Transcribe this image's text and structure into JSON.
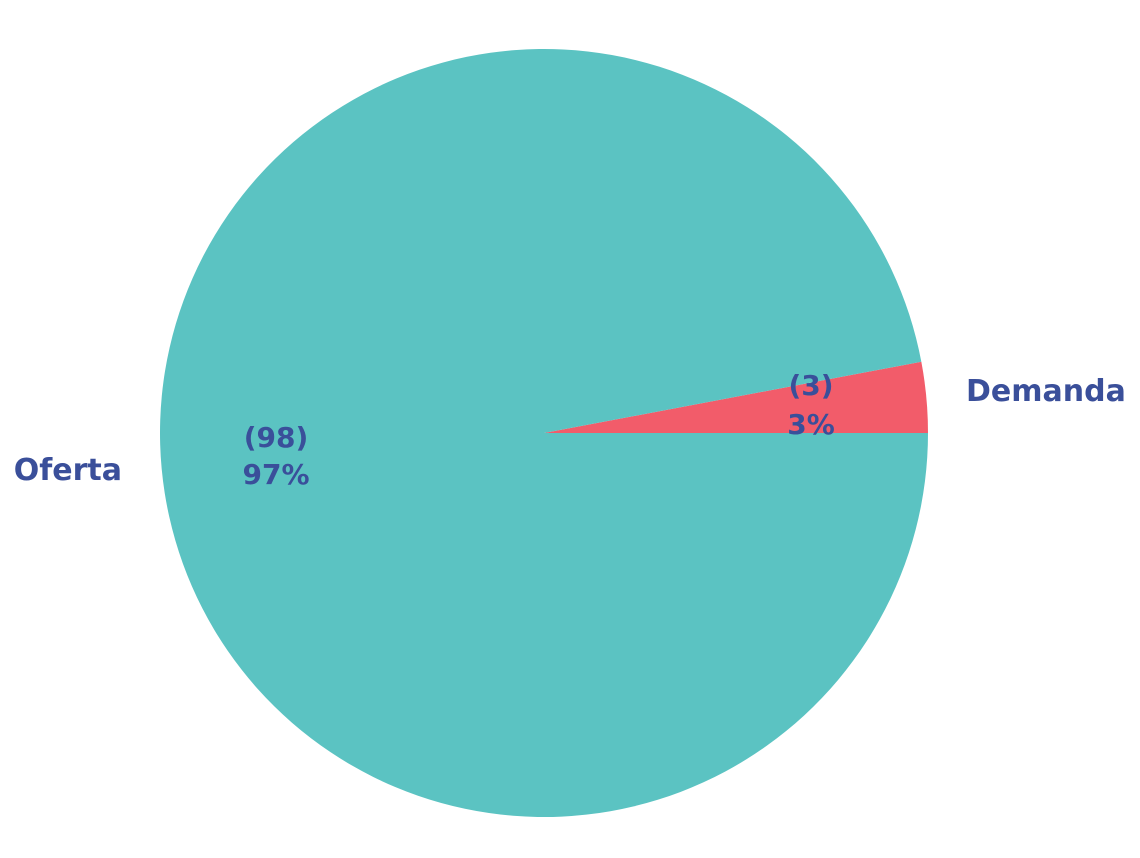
{
  "chart_data": {
    "type": "pie",
    "title": "",
    "categories": [
      "Demanda",
      "Oferta"
    ],
    "values": [
      3,
      98
    ],
    "percent_labels": [
      "3%",
      "97%"
    ],
    "count_labels": [
      "(3)",
      "(98)"
    ],
    "colors": [
      "#f25c6a",
      "#5bc3c2"
    ],
    "label_color": "#3a4f9a",
    "start_angle_deg": 0,
    "direction": "counterclockwise"
  }
}
